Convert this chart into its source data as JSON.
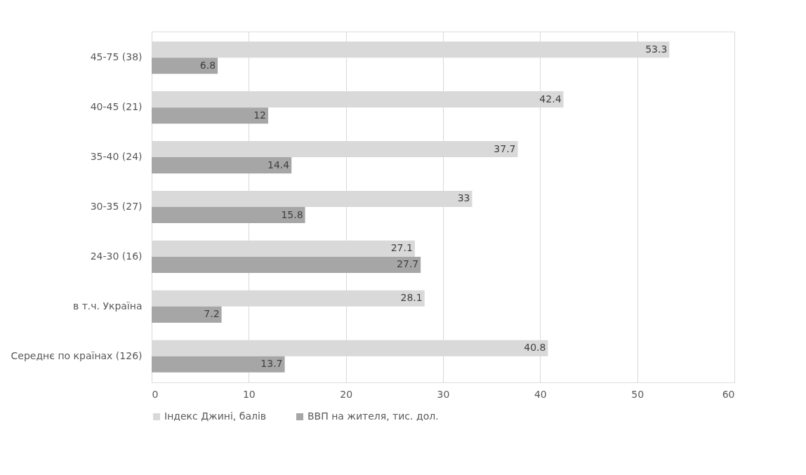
{
  "chart_data": {
    "type": "bar",
    "orientation": "horizontal",
    "categories": [
      "45-75 (38)",
      "40-45 (21)",
      "35-40 (24)",
      "30-35 (27)",
      "24-30 (16)",
      "в т.ч. Україна",
      "Середнє по країнах (126)"
    ],
    "series": [
      {
        "name": "Індекс Джині, балів",
        "color": "#d9d9d9",
        "values": [
          53.3,
          42.4,
          37.7,
          33,
          27.1,
          28.1,
          40.8
        ]
      },
      {
        "name": "ВВП на жителя, тис. дол.",
        "color": "#a6a6a6",
        "values": [
          6.8,
          12,
          14.4,
          15.8,
          27.7,
          7.2,
          13.7
        ]
      }
    ],
    "xlim": [
      0,
      60
    ],
    "xticks": [
      0,
      10,
      20,
      30,
      40,
      50,
      60
    ],
    "grid": "x",
    "legend": "bottom",
    "data_labels": true
  }
}
